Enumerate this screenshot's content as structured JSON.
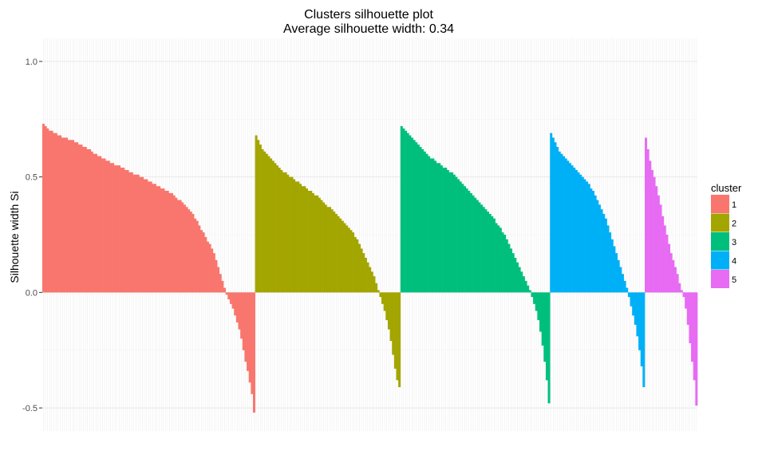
{
  "chart_data": {
    "type": "bar",
    "title": "Clusters silhouette plot",
    "subtitle": "Average silhouette width: 0.34",
    "xlabel": "",
    "ylabel": "Silhouette width Si",
    "ylim": [
      -0.6,
      1.1
    ],
    "yticks": [
      "-0.5",
      "0.0",
      "0.5",
      "1.0"
    ],
    "grid": true,
    "legend": {
      "title": "cluster",
      "position": "right"
    },
    "series": [
      {
        "name": "1",
        "color": "#F8766D",
        "values": [
          0.73,
          0.72,
          0.71,
          0.7,
          0.7,
          0.69,
          0.69,
          0.68,
          0.68,
          0.67,
          0.67,
          0.67,
          0.66,
          0.66,
          0.66,
          0.65,
          0.65,
          0.64,
          0.64,
          0.63,
          0.63,
          0.62,
          0.62,
          0.61,
          0.6,
          0.6,
          0.59,
          0.59,
          0.58,
          0.58,
          0.57,
          0.57,
          0.56,
          0.56,
          0.55,
          0.55,
          0.55,
          0.54,
          0.54,
          0.53,
          0.53,
          0.52,
          0.52,
          0.51,
          0.51,
          0.51,
          0.5,
          0.5,
          0.49,
          0.49,
          0.48,
          0.48,
          0.47,
          0.47,
          0.46,
          0.46,
          0.45,
          0.45,
          0.44,
          0.44,
          0.43,
          0.43,
          0.42,
          0.41,
          0.4,
          0.4,
          0.39,
          0.38,
          0.37,
          0.36,
          0.35,
          0.34,
          0.32,
          0.31,
          0.29,
          0.27,
          0.26,
          0.24,
          0.22,
          0.21,
          0.19,
          0.17,
          0.14,
          0.11,
          0.08,
          0.05,
          0.02,
          -0.01,
          -0.03,
          -0.05,
          -0.07,
          -0.1,
          -0.13,
          -0.16,
          -0.2,
          -0.25,
          -0.3,
          -0.34,
          -0.39,
          -0.44,
          -0.52
        ]
      },
      {
        "name": "2",
        "color": "#A3A500",
        "values": [
          0.68,
          0.66,
          0.64,
          0.62,
          0.61,
          0.6,
          0.59,
          0.58,
          0.57,
          0.56,
          0.55,
          0.54,
          0.53,
          0.52,
          0.52,
          0.51,
          0.5,
          0.5,
          0.49,
          0.48,
          0.48,
          0.47,
          0.46,
          0.46,
          0.45,
          0.44,
          0.44,
          0.43,
          0.42,
          0.42,
          0.41,
          0.4,
          0.39,
          0.38,
          0.37,
          0.37,
          0.36,
          0.35,
          0.34,
          0.33,
          0.32,
          0.31,
          0.3,
          0.29,
          0.28,
          0.27,
          0.26,
          0.24,
          0.23,
          0.21,
          0.19,
          0.17,
          0.15,
          0.13,
          0.11,
          0.09,
          0.07,
          0.04,
          0.01,
          -0.02,
          -0.05,
          -0.08,
          -0.12,
          -0.16,
          -0.21,
          -0.27,
          -0.33,
          -0.38,
          -0.41
        ]
      },
      {
        "name": "3",
        "color": "#00BF7D",
        "values": [
          0.72,
          0.71,
          0.7,
          0.69,
          0.68,
          0.67,
          0.66,
          0.65,
          0.64,
          0.63,
          0.62,
          0.61,
          0.6,
          0.59,
          0.58,
          0.58,
          0.57,
          0.56,
          0.56,
          0.55,
          0.54,
          0.54,
          0.53,
          0.52,
          0.52,
          0.51,
          0.5,
          0.49,
          0.48,
          0.47,
          0.46,
          0.45,
          0.44,
          0.43,
          0.42,
          0.41,
          0.4,
          0.39,
          0.38,
          0.37,
          0.36,
          0.35,
          0.34,
          0.33,
          0.32,
          0.3,
          0.29,
          0.28,
          0.26,
          0.25,
          0.23,
          0.21,
          0.19,
          0.17,
          0.15,
          0.13,
          0.11,
          0.09,
          0.07,
          0.05,
          0.03,
          0.01,
          -0.02,
          -0.05,
          -0.08,
          -0.12,
          -0.17,
          -0.23,
          -0.3,
          -0.38,
          -0.48
        ]
      },
      {
        "name": "4",
        "color": "#00B0F6",
        "values": [
          0.69,
          0.67,
          0.65,
          0.63,
          0.61,
          0.6,
          0.59,
          0.58,
          0.57,
          0.56,
          0.55,
          0.54,
          0.53,
          0.52,
          0.51,
          0.5,
          0.49,
          0.48,
          0.47,
          0.45,
          0.44,
          0.42,
          0.4,
          0.38,
          0.36,
          0.34,
          0.32,
          0.29,
          0.26,
          0.23,
          0.2,
          0.17,
          0.14,
          0.11,
          0.08,
          0.05,
          0.02,
          -0.02,
          -0.06,
          -0.1,
          -0.14,
          -0.19,
          -0.25,
          -0.32,
          -0.41
        ]
      },
      {
        "name": "5",
        "color": "#E76BF3",
        "values": [
          0.67,
          0.62,
          0.57,
          0.53,
          0.5,
          0.46,
          0.42,
          0.38,
          0.33,
          0.29,
          0.25,
          0.21,
          0.17,
          0.14,
          0.11,
          0.08,
          0.04,
          0.01,
          -0.02,
          -0.07,
          -0.14,
          -0.22,
          -0.3,
          -0.38,
          -0.49
        ]
      }
    ]
  }
}
